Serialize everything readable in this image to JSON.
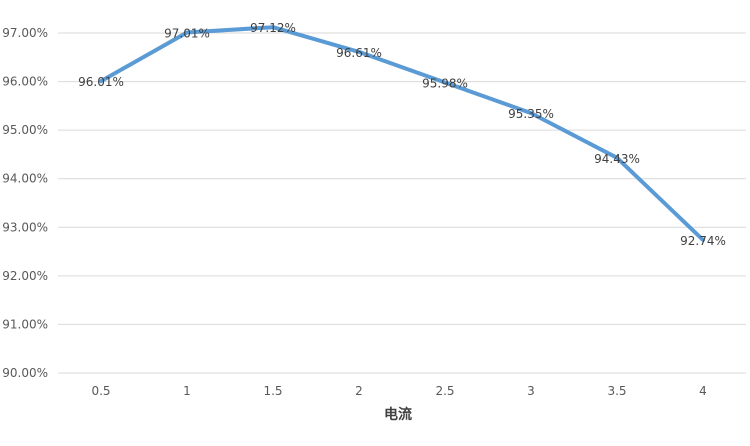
{
  "chart_data": {
    "type": "line",
    "title": "",
    "xlabel": "电流",
    "ylabel": "",
    "categories": [
      "0.5",
      "1",
      "1.5",
      "2",
      "2.5",
      "3",
      "3.5",
      "4"
    ],
    "series": [
      {
        "values": [
          96.01,
          97.01,
          97.12,
          96.61,
          95.98,
          95.35,
          94.43,
          92.74
        ],
        "data_labels": [
          "96.01%",
          "97.01%",
          "97.12%",
          "96.61%",
          "95.98%",
          "95.35%",
          "94.43%",
          "92.74%"
        ],
        "color": "#5b9bd5"
      }
    ],
    "ylim": [
      90,
      97
    ],
    "y_ticks": [
      90,
      91,
      92,
      93,
      94,
      95,
      96,
      97
    ],
    "y_tick_labels": [
      "90.00%",
      "91.00%",
      "92.00%",
      "93.00%",
      "94.00%",
      "95.00%",
      "96.00%",
      "97.00%"
    ],
    "grid": true,
    "legend": "none"
  }
}
